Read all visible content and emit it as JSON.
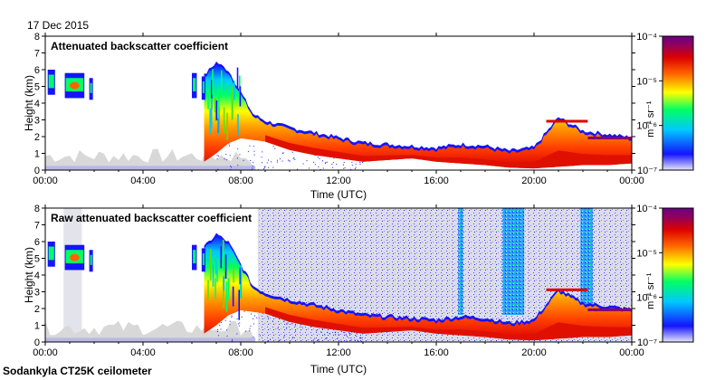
{
  "date": "17 Dec 2015",
  "footer": "Sodankyla CT25K ceilometer",
  "chart_data": [
    {
      "type": "heatmap",
      "title": "Attenuated backscatter coefficient",
      "xlabel": "Time (UTC)",
      "ylabel": "Height (km)",
      "xlim": [
        0,
        24
      ],
      "ylim": [
        0,
        8
      ],
      "xticks": [
        "00:00",
        "04:00",
        "08:00",
        "12:00",
        "16:00",
        "20:00",
        "00:00"
      ],
      "yticks": [
        "0",
        "1",
        "2",
        "3",
        "4",
        "5",
        "6",
        "7",
        "8"
      ],
      "cloud_base_km": [
        [
          0.0,
          0.1
        ],
        [
          6.5,
          0.5
        ],
        [
          7.0,
          1.0
        ],
        [
          7.5,
          1.6
        ],
        [
          8.0,
          1.9
        ],
        [
          9.0,
          1.7
        ],
        [
          10.0,
          1.2
        ],
        [
          11.0,
          0.9
        ],
        [
          12.0,
          0.7
        ],
        [
          13.0,
          0.5
        ],
        [
          14.0,
          0.6
        ],
        [
          15.0,
          0.7
        ],
        [
          16.0,
          0.5
        ],
        [
          17.0,
          0.4
        ],
        [
          18.0,
          0.3
        ],
        [
          19.0,
          0.15
        ],
        [
          20.0,
          0.1
        ],
        [
          21.0,
          0.2
        ],
        [
          22.0,
          0.3
        ],
        [
          23.0,
          0.3
        ],
        [
          24.0,
          0.4
        ]
      ],
      "cloud_top_km": [
        [
          6.5,
          5.5
        ],
        [
          7.0,
          6.3
        ],
        [
          7.5,
          5.8
        ],
        [
          8.0,
          4.5
        ],
        [
          8.5,
          3.2
        ],
        [
          9.0,
          2.8
        ],
        [
          10.0,
          2.4
        ],
        [
          11.0,
          2.1
        ],
        [
          12.0,
          1.8
        ],
        [
          13.0,
          1.5
        ],
        [
          14.0,
          1.4
        ],
        [
          15.0,
          1.3
        ],
        [
          16.0,
          1.2
        ],
        [
          17.0,
          1.4
        ],
        [
          18.0,
          1.3
        ],
        [
          19.0,
          1.0
        ],
        [
          20.0,
          1.2
        ],
        [
          21.0,
          3.0
        ],
        [
          22.0,
          2.2
        ],
        [
          23.0,
          2.0
        ],
        [
          24.0,
          1.8
        ]
      ],
      "aloft_layers": [
        {
          "t0": 0.1,
          "t1": 0.4,
          "h0": 4.5,
          "h1": 6.0
        },
        {
          "t0": 0.8,
          "t1": 1.6,
          "h0": 4.3,
          "h1": 5.8
        },
        {
          "t0": 1.8,
          "t1": 1.95,
          "h0": 4.2,
          "h1": 5.5
        },
        {
          "t0": 6.0,
          "t1": 6.2,
          "h0": 4.3,
          "h1": 5.8
        },
        {
          "t0": 6.4,
          "t1": 6.55,
          "h0": 4.2,
          "h1": 5.6
        }
      ]
    },
    {
      "type": "heatmap",
      "title": "Raw attenuated backscatter coefficient",
      "xlabel": "Time (UTC)",
      "ylabel": "Height (km)",
      "xlim": [
        0,
        24
      ],
      "ylim": [
        0,
        8
      ],
      "xticks": [
        "00:00",
        "04:00",
        "08:00",
        "12:00",
        "16:00",
        "20:00",
        "00:00"
      ],
      "yticks": [
        "0",
        "1",
        "2",
        "3",
        "4",
        "5",
        "6",
        "7",
        "8"
      ],
      "noise_from_h": 8.7,
      "noise_columns": [
        {
          "t0": 16.9,
          "t1": 17.1
        },
        {
          "t0": 18.7,
          "t1": 19.6
        },
        {
          "t0": 21.9,
          "t1": 22.4
        }
      ]
    }
  ],
  "colorbar": {
    "label": "m⁻¹ sr⁻¹",
    "ticks": [
      "10⁻⁴",
      "10⁻⁵",
      "10⁻⁶",
      "10⁻⁷"
    ],
    "scale": "log",
    "range": [
      1e-07,
      0.0001
    ],
    "colors": [
      "#e6e6fa",
      "#1414ff",
      "#00c8ff",
      "#00ff64",
      "#ffff00",
      "#ff6400",
      "#dc0000",
      "#8c0064",
      "#6a0080"
    ]
  }
}
